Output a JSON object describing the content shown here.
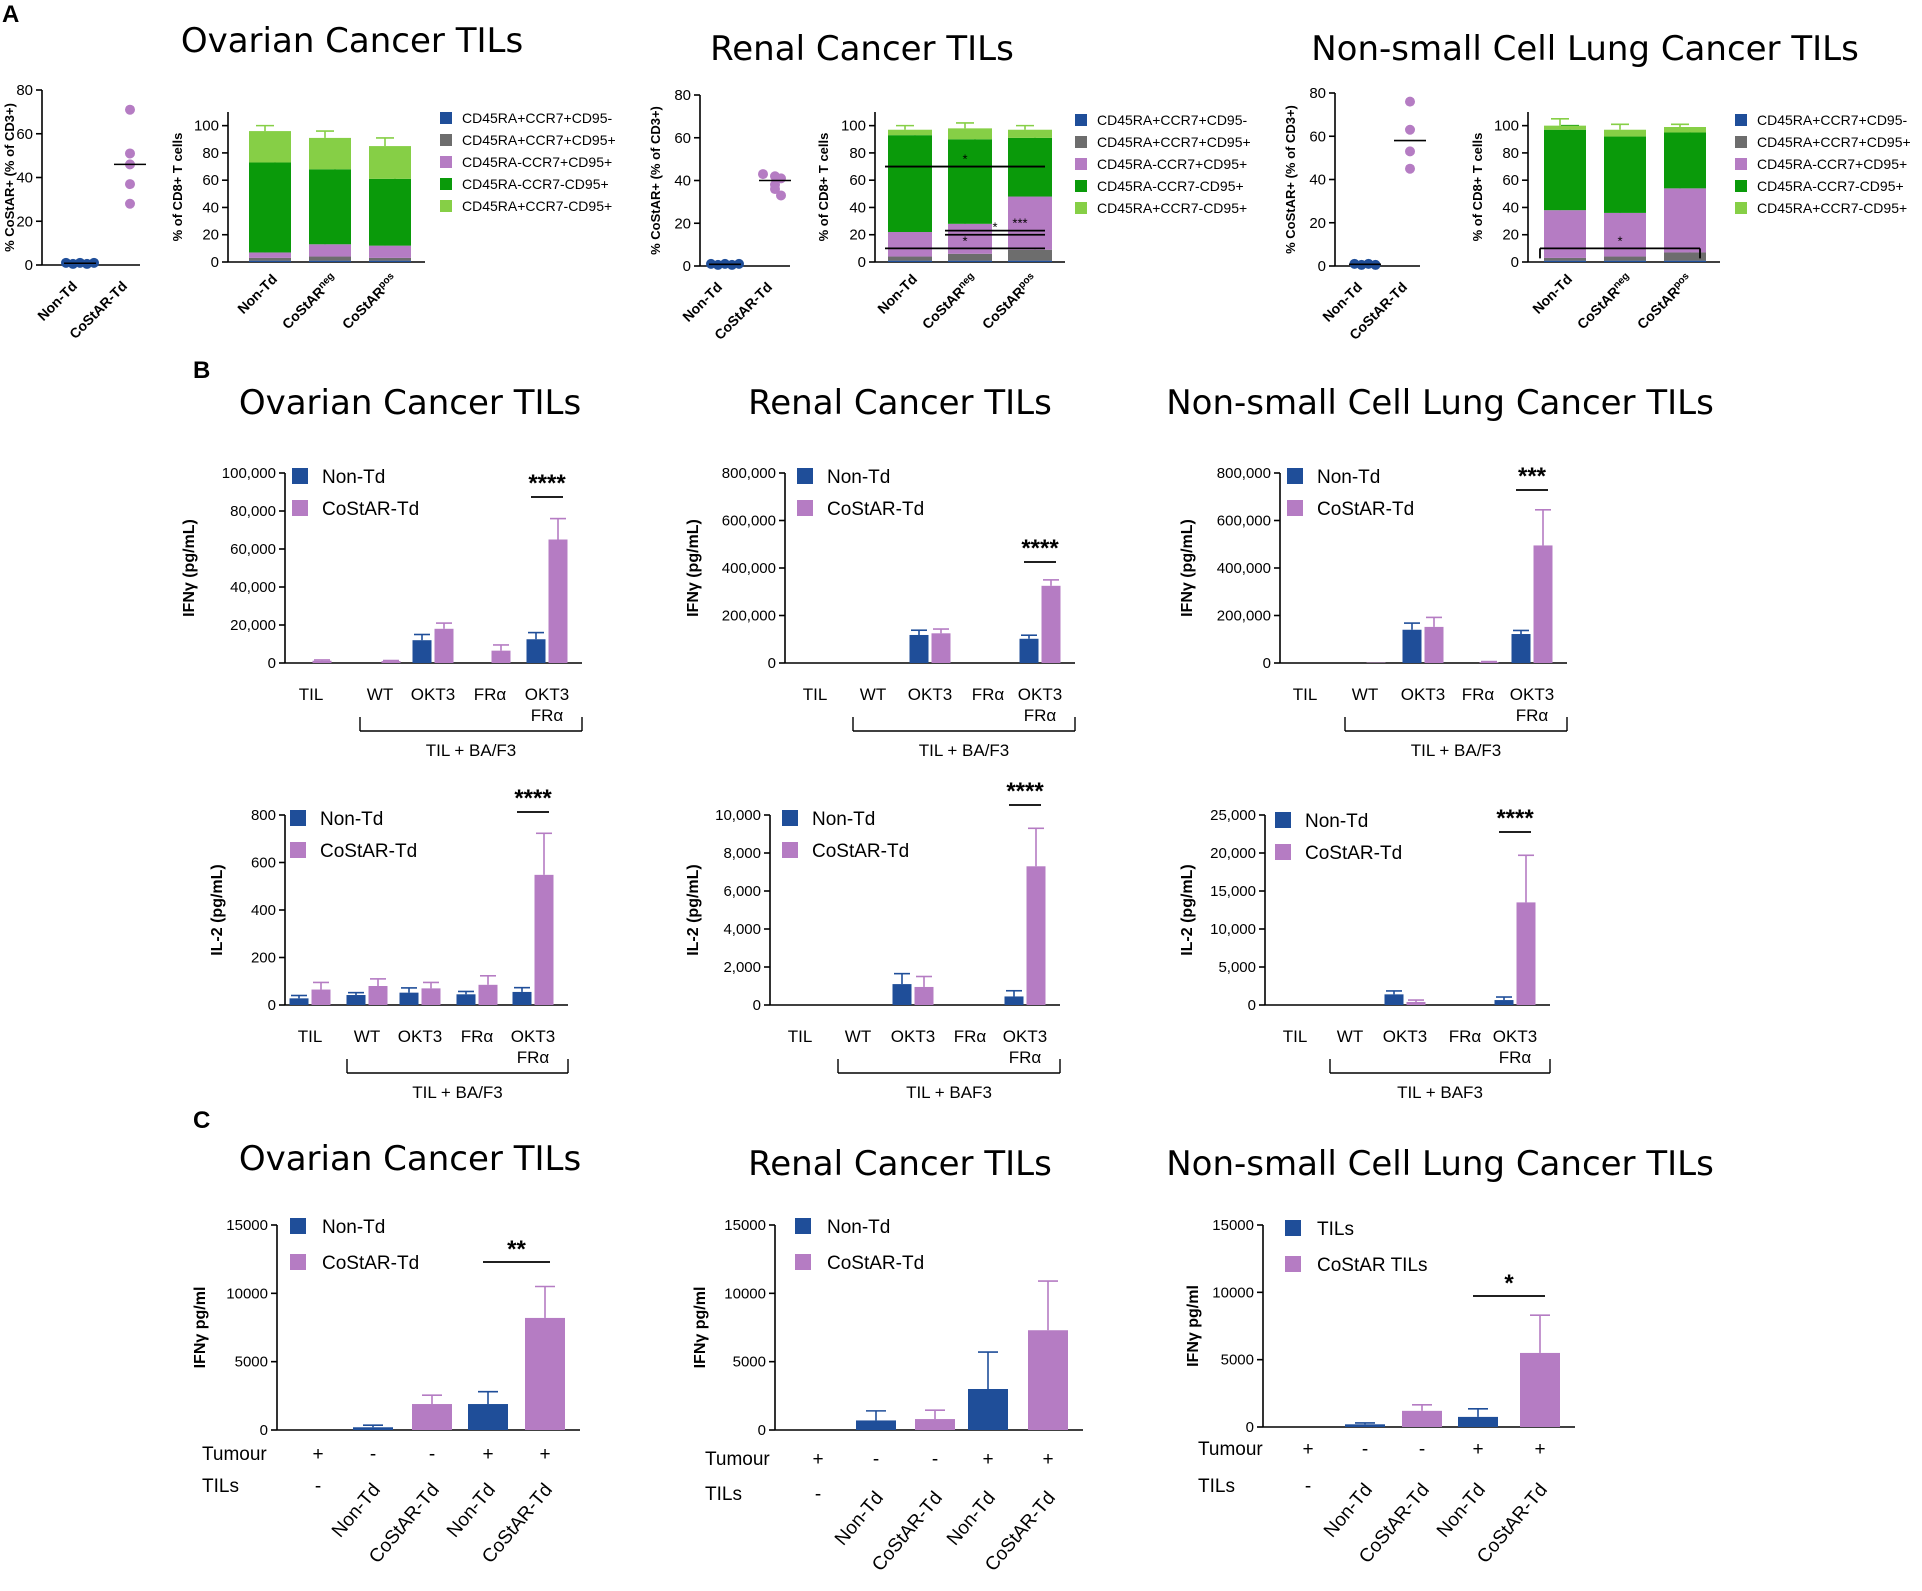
{
  "figure": {
    "panel_letters": [
      "A",
      "B",
      "C"
    ],
    "titles": [
      "Ovarian Cancer TILs",
      "Renal Cancer TILs",
      "Non-small Cell Lung Cancer TILs"
    ]
  },
  "colors": {
    "nontd": "#1f4e99",
    "costar": "#b57cc3",
    "dark_blue": "#1f4e99",
    "gray": "#6d6d6d",
    "purple": "#b57cc3",
    "green": "#0a9a0a",
    "light_green": "#86cf46"
  },
  "chart_data": [
    {
      "type": "scatter",
      "id": "A1",
      "ylabel": "% CoStAR+ (% of CD3+)",
      "yticks": [
        "0",
        "20",
        "40",
        "60",
        "80"
      ],
      "ylim": [
        0,
        80
      ],
      "categories": [
        "Non-Td",
        "CoStAR-Td"
      ],
      "series": [
        {
          "name": "Non-Td",
          "values": [
            1,
            0.5,
            1,
            0.5,
            1
          ],
          "mean": 0.8
        },
        {
          "name": "CoStAR-Td",
          "values": [
            71,
            51,
            46,
            37,
            28
          ],
          "mean": 46
        }
      ]
    },
    {
      "type": "bar",
      "stacked": true,
      "id": "A2",
      "ylabel": "% of CD8+ T cells",
      "yticks": [
        "0",
        "20",
        "40",
        "60",
        "80",
        "100"
      ],
      "ylim": [
        0,
        110
      ],
      "categories": [
        {
          "base": "Non-Td",
          "sup": ""
        },
        {
          "base": "CoStAR",
          "sup": "neg"
        },
        {
          "base": "CoStAR",
          "sup": "pos"
        }
      ],
      "legend": [
        "CD45RA+CCR7+CD95-",
        "CD45RA+CCR7+CD95+",
        "CD45RA-CCR7+CD95+",
        "CD45RA-CCR7-CD95+",
        "CD45RA+CCR7-CD95+"
      ],
      "segments": [
        [
          1,
          2,
          4,
          66,
          23
        ],
        [
          1,
          3,
          9,
          55,
          23
        ],
        [
          1,
          2,
          9,
          49,
          24
        ]
      ],
      "errors": [
        [
          0,
          0,
          2,
          4,
          4
        ],
        [
          0,
          0,
          4,
          7,
          5
        ],
        [
          0,
          0,
          3,
          6,
          6
        ]
      ],
      "annotations": []
    },
    {
      "type": "scatter",
      "id": "A3",
      "ylabel": "% CoStAR+ (% of CD3+)",
      "yticks": [
        "0",
        "20",
        "40",
        "60",
        "80"
      ],
      "ylim": [
        0,
        80
      ],
      "categories": [
        "Non-Td",
        "CoStAR-Td"
      ],
      "series": [
        {
          "name": "Non-Td",
          "values": [
            1,
            0.5,
            1,
            0.5,
            1
          ],
          "mean": 0.8
        },
        {
          "name": "CoStAR-Td",
          "values": [
            43,
            42,
            41,
            38,
            36,
            33
          ],
          "mean": 40
        }
      ]
    },
    {
      "type": "bar",
      "stacked": true,
      "id": "A4",
      "ylabel": "% of CD8+ T cells",
      "yticks": [
        "0",
        "20",
        "40",
        "60",
        "80",
        "100"
      ],
      "ylim": [
        0,
        110
      ],
      "categories": [
        {
          "base": "Non-Td",
          "sup": ""
        },
        {
          "base": "CoStAR",
          "sup": "neg"
        },
        {
          "base": "CoStAR",
          "sup": "pos"
        }
      ],
      "legend": [
        "CD45RA+CCR7+CD95-",
        "CD45RA+CCR7+CD95+",
        "CD45RA-CCR7+CD95+",
        "CD45RA-CCR7-CD95+",
        "CD45RA+CCR7-CD95+"
      ],
      "segments": [
        [
          1,
          3,
          18,
          71,
          4
        ],
        [
          1,
          5,
          22,
          62,
          8
        ],
        [
          1,
          8,
          39,
          43,
          6
        ]
      ],
      "errors": [
        [
          0,
          0,
          3,
          3,
          3
        ],
        [
          0,
          0,
          3,
          4,
          4
        ],
        [
          0,
          2,
          3,
          4,
          3
        ]
      ],
      "annotations": [
        {
          "from": 0,
          "to": 2,
          "y": 70,
          "text": "*"
        },
        {
          "from": 1,
          "to": 2,
          "y": 20,
          "text": "*"
        },
        {
          "from": 1,
          "to": 2,
          "y": 23,
          "text": "***"
        },
        {
          "from": 0,
          "to": 2,
          "y": 10,
          "text": "*"
        }
      ]
    },
    {
      "type": "scatter",
      "id": "A5",
      "ylabel": "% CoStAR+ (% of CD3+)",
      "yticks": [
        "0",
        "20",
        "40",
        "60",
        "80"
      ],
      "ylim": [
        0,
        80
      ],
      "categories": [
        "Non-Td",
        "CoStAR-Td"
      ],
      "series": [
        {
          "name": "Non-Td",
          "values": [
            1,
            0.5,
            1,
            0.5
          ],
          "mean": 0.8
        },
        {
          "name": "CoStAR-Td",
          "values": [
            76,
            63,
            53,
            45
          ],
          "mean": 58
        }
      ]
    },
    {
      "type": "bar",
      "stacked": true,
      "id": "A6",
      "ylabel": "% of CD8+ T cells",
      "yticks": [
        "0",
        "20",
        "40",
        "60",
        "80",
        "100"
      ],
      "ylim": [
        0,
        110
      ],
      "categories": [
        {
          "base": "Non-Td",
          "sup": ""
        },
        {
          "base": "CoStAR",
          "sup": "neg"
        },
        {
          "base": "CoStAR",
          "sup": "pos"
        }
      ],
      "legend": [
        "CD45RA+CCR7+CD95-",
        "CD45RA+CCR7+CD95+",
        "CD45RA-CCR7+CD95+",
        "CD45RA-CCR7-CD95+",
        "CD45RA+CCR7-CD95+"
      ],
      "segments": [
        [
          1,
          2,
          35,
          59,
          3
        ],
        [
          1,
          3,
          32,
          56,
          5
        ],
        [
          1,
          6,
          47,
          41,
          4
        ]
      ],
      "errors": [
        [
          0,
          0,
          8,
          3,
          5
        ],
        [
          0,
          0,
          5,
          3,
          4
        ],
        [
          0,
          2,
          5,
          3,
          2
        ]
      ],
      "annotations": [
        {
          "from": 0,
          "to": 2,
          "y": 10,
          "text": "*"
        }
      ]
    },
    {
      "type": "bar",
      "id": "B1",
      "ylabel": "IFNγ (pg/mL)",
      "yticks": [
        "0",
        "20,000",
        "40,000",
        "60,000",
        "80,000",
        "100,000"
      ],
      "ylim": [
        0,
        100000
      ],
      "categories": [
        "TIL",
        "WT",
        "OKT3",
        "FRα",
        "OKT3\nFRα"
      ],
      "group_label": "TIL + BA/F3",
      "legend": [
        "Non-Td",
        "CoStAR-Td"
      ],
      "series": [
        {
          "name": "Non-Td",
          "values": [
            0,
            0,
            12000,
            0,
            12500
          ],
          "errors": [
            0,
            0,
            3000,
            0,
            3500
          ]
        },
        {
          "name": "CoStAR-Td",
          "values": [
            1200,
            1000,
            18000,
            6500,
            65000
          ],
          "errors": [
            400,
            300,
            3000,
            3000,
            11000
          ]
        }
      ],
      "sig": {
        "text": "****",
        "from_group": 4
      }
    },
    {
      "type": "bar",
      "id": "B2",
      "ylabel": "IFNγ (pg/mL)",
      "yticks": [
        "0",
        "200,000",
        "400,000",
        "600,000",
        "800,000"
      ],
      "ylim": [
        0,
        800000
      ],
      "categories": [
        "TIL",
        "WT",
        "OKT3",
        "FRα",
        "OKT3\nFRα"
      ],
      "group_label": "TIL + BA/F3",
      "legend": [
        "Non-Td",
        "CoStAR-Td"
      ],
      "series": [
        {
          "name": "Non-Td",
          "values": [
            0,
            0,
            118000,
            0,
            102000
          ],
          "errors": [
            0,
            0,
            20000,
            0,
            15000
          ]
        },
        {
          "name": "CoStAR-Td",
          "values": [
            0,
            0,
            125000,
            0,
            325000
          ],
          "errors": [
            0,
            0,
            18000,
            0,
            25000
          ]
        }
      ],
      "sig": {
        "text": "****",
        "from_group": 4
      }
    },
    {
      "type": "bar",
      "id": "B3",
      "ylabel": "IFNγ (pg/mL)",
      "yticks": [
        "0",
        "200,000",
        "400,000",
        "600,000",
        "800,000"
      ],
      "ylim": [
        0,
        800000
      ],
      "categories": [
        "TIL",
        "WT",
        "OKT3",
        "FRα",
        "OKT3\nFRα"
      ],
      "group_label": "TIL + BA/F3",
      "legend": [
        "Non-Td",
        "CoStAR-Td"
      ],
      "series": [
        {
          "name": "Non-Td",
          "values": [
            0,
            0,
            140000,
            0,
            122000
          ],
          "errors": [
            0,
            0,
            28000,
            0,
            15000
          ]
        },
        {
          "name": "CoStAR-Td",
          "values": [
            0,
            1500,
            152000,
            4000,
            495000
          ],
          "errors": [
            0,
            0,
            40000,
            2000,
            150000
          ]
        }
      ],
      "sig": {
        "text": "***",
        "from_group": 4
      }
    },
    {
      "type": "bar",
      "id": "B4",
      "ylabel": "IL-2 (pg/mL)",
      "yticks": [
        "0",
        "200",
        "400",
        "600",
        "800"
      ],
      "ylim": [
        0,
        800
      ],
      "categories": [
        "TIL",
        "WT",
        "OKT3",
        "FRα",
        "OKT3\nFRα"
      ],
      "group_label": "TIL + BA/F3",
      "legend": [
        "Non-Td",
        "CoStAR-Td"
      ],
      "series": [
        {
          "name": "Non-Td",
          "values": [
            28,
            42,
            52,
            45,
            55
          ],
          "errors": [
            12,
            10,
            20,
            12,
            18
          ]
        },
        {
          "name": "CoStAR-Td",
          "values": [
            65,
            80,
            70,
            85,
            548
          ],
          "errors": [
            30,
            30,
            25,
            38,
            175
          ]
        }
      ],
      "sig": {
        "text": "****",
        "from_group": 4
      }
    },
    {
      "type": "bar",
      "id": "B5",
      "ylabel": "IL-2 (pg/mL)",
      "yticks": [
        "0",
        "2,000",
        "4,000",
        "6,000",
        "8,000",
        "10,000"
      ],
      "ylim": [
        0,
        10000
      ],
      "categories": [
        "TIL",
        "WT",
        "OKT3",
        "FRα",
        "OKT3\nFRα"
      ],
      "group_label": "TIL + BAF3",
      "legend": [
        "Non-Td",
        "CoStAR-Td"
      ],
      "series": [
        {
          "name": "Non-Td",
          "values": [
            0,
            0,
            1100,
            0,
            450
          ],
          "errors": [
            0,
            0,
            550,
            0,
            300
          ]
        },
        {
          "name": "CoStAR-Td",
          "values": [
            0,
            0,
            950,
            0,
            7300
          ],
          "errors": [
            0,
            0,
            550,
            0,
            2000
          ]
        }
      ],
      "sig": {
        "text": "****",
        "from_group": 4
      }
    },
    {
      "type": "bar",
      "id": "B6",
      "ylabel": "IL-2 (pg/mL)",
      "yticks": [
        "0",
        "5,000",
        "10,000",
        "15,000",
        "20,000",
        "25,000"
      ],
      "ylim": [
        0,
        25000
      ],
      "categories": [
        "TIL",
        "WT",
        "OKT3",
        "FRα",
        "OKT3\nFRα"
      ],
      "group_label": "TIL + BAF3",
      "legend": [
        "Non-Td",
        "CoStAR-Td"
      ],
      "series": [
        {
          "name": "Non-Td",
          "values": [
            0,
            0,
            1400,
            0,
            650
          ],
          "errors": [
            0,
            0,
            450,
            0,
            400
          ]
        },
        {
          "name": "CoStAR-Td",
          "values": [
            0,
            0,
            400,
            0,
            13500
          ],
          "errors": [
            0,
            0,
            250,
            0,
            6200
          ]
        }
      ],
      "sig": {
        "text": "****",
        "from_group": 4
      }
    },
    {
      "type": "bar",
      "id": "C1",
      "ylabel": "IFNγ pg/ml",
      "yticks": [
        "0",
        "5000",
        "10000",
        "15000"
      ],
      "ylim": [
        0,
        15000
      ],
      "legend": [
        "Non-Td",
        "CoStAR-Td"
      ],
      "row_labels": [
        "Tumour",
        "TILs"
      ],
      "tumour": [
        "+",
        "-",
        "-",
        "+",
        "+"
      ],
      "tils": [
        "-",
        "Non-Td",
        "CoStAR-Td",
        "Non-Td",
        "CoStAR-Td"
      ],
      "series_of_bar": [
        0,
        0,
        1,
        0,
        1
      ],
      "values": [
        0,
        200,
        1900,
        1900,
        8200
      ],
      "errors": [
        0,
        150,
        650,
        900,
        2300
      ],
      "sig": {
        "text": "**",
        "from": 3,
        "to": 4
      }
    },
    {
      "type": "bar",
      "id": "C2",
      "ylabel": "IFNγ pg/ml",
      "yticks": [
        "0",
        "5000",
        "10000",
        "15000"
      ],
      "ylim": [
        0,
        15000
      ],
      "legend": [
        "Non-Td",
        "CoStAR-Td"
      ],
      "row_labels": [
        "Tumour",
        "TILs"
      ],
      "tumour": [
        "+",
        "-",
        "-",
        "+",
        "+"
      ],
      "tils": [
        "-",
        "Non-Td",
        "CoStAR-Td",
        "Non-Td",
        "CoStAR-Td"
      ],
      "series_of_bar": [
        0,
        0,
        1,
        0,
        1
      ],
      "values": [
        0,
        700,
        800,
        3000,
        7300
      ],
      "errors": [
        0,
        700,
        650,
        2700,
        3600
      ],
      "sig": null
    },
    {
      "type": "bar",
      "id": "C3",
      "ylabel": "IFNγ pg/ml",
      "yticks": [
        "0",
        "5000",
        "10000",
        "15000"
      ],
      "ylim": [
        0,
        15000
      ],
      "legend": [
        "TILs",
        "CoStAR TILs"
      ],
      "row_labels": [
        "Tumour",
        "TILs"
      ],
      "tumour": [
        "+",
        "-",
        "-",
        "+",
        "+"
      ],
      "tils": [
        "-",
        "Non-Td",
        "CoStAR-Td",
        "Non-Td",
        "CoStAR-Td"
      ],
      "series_of_bar": [
        0,
        0,
        1,
        0,
        1
      ],
      "values": [
        0,
        200,
        1200,
        750,
        5500
      ],
      "errors": [
        0,
        100,
        450,
        600,
        2800
      ],
      "sig": {
        "text": "*",
        "from": 3,
        "to": 4
      }
    }
  ]
}
